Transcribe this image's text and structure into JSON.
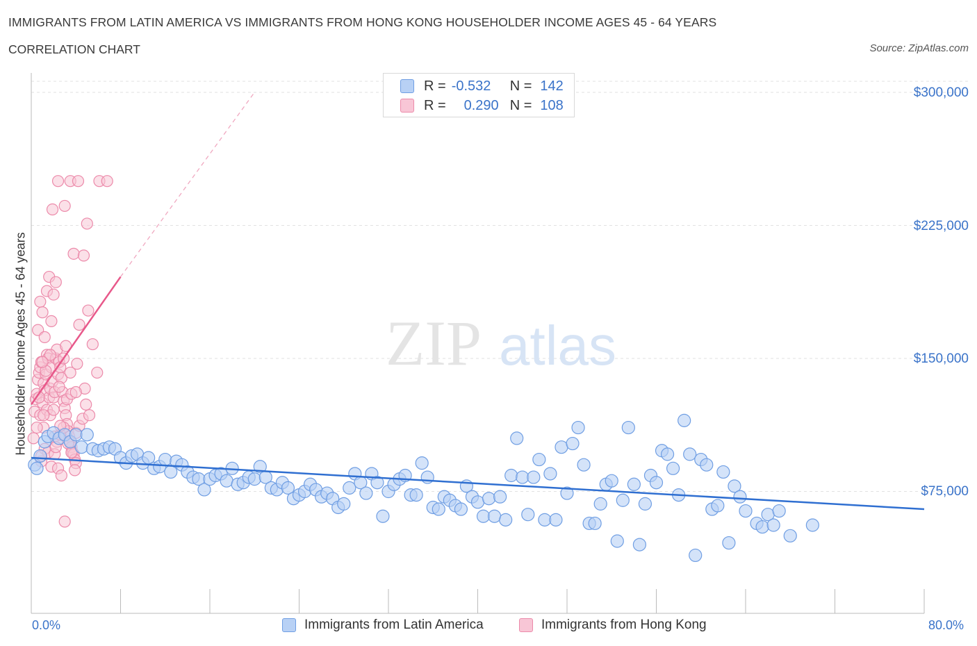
{
  "header": {
    "title": "IMMIGRANTS FROM LATIN AMERICA VS IMMIGRANTS FROM HONG KONG HOUSEHOLDER INCOME AGES 45 - 64 YEARS",
    "subtitle": "CORRELATION CHART",
    "source": "Source: ZipAtlas.com"
  },
  "legend": {
    "rows": [
      {
        "r_label": "R =",
        "r_value": "-0.532",
        "n_label": "N =",
        "n_value": "142"
      },
      {
        "r_label": "R =",
        "r_value": "0.290",
        "n_label": "N =",
        "n_value": "108"
      }
    ]
  },
  "bottom_legend": {
    "series1": "Immigrants from Latin America",
    "series2": "Immigrants from Hong Kong"
  },
  "axes": {
    "x_min_label": "0.0%",
    "x_max_label": "80.0%",
    "ylabel": "Householder Income Ages 45 - 64 years",
    "y_ticks": [
      "$300,000",
      "$225,000",
      "$150,000",
      "$75,000"
    ]
  },
  "watermark": {
    "zip": "ZIP",
    "atlas": "atlas"
  },
  "colors": {
    "blue": "#3a73c9",
    "blue_fill": "#b8d1f5",
    "pink": "#ec6f97",
    "pink_fill": "#f8c6d6"
  },
  "chart_data": {
    "type": "scatter",
    "xlabel": "",
    "ylabel": "Householder Income Ages 45 - 64 years",
    "xlim": [
      0,
      80
    ],
    "ylim": [
      0,
      300000
    ],
    "grid": true,
    "series": [
      {
        "name": "Immigrants from Latin America",
        "trend": {
          "x": [
            0,
            80
          ],
          "y": [
            94000,
            65000
          ]
        },
        "points": [
          [
            0.3,
            90000
          ],
          [
            0.5,
            88000
          ],
          [
            0.8,
            95000
          ],
          [
            1.2,
            103000
          ],
          [
            1.5,
            106000
          ],
          [
            2.0,
            108000
          ],
          [
            2.5,
            105000
          ],
          [
            3.0,
            107000
          ],
          [
            3.5,
            103000
          ],
          [
            4.0,
            107000
          ],
          [
            4.5,
            100000
          ],
          [
            5.0,
            107000
          ],
          [
            5.5,
            99000
          ],
          [
            6.0,
            98000
          ],
          [
            6.5,
            99000
          ],
          [
            7.0,
            100000
          ],
          [
            7.5,
            99000
          ],
          [
            8.0,
            94000
          ],
          [
            8.5,
            91000
          ],
          [
            9.0,
            95000
          ],
          [
            9.5,
            96000
          ],
          [
            10.0,
            91000
          ],
          [
            10.5,
            94000
          ],
          [
            11.0,
            88000
          ],
          [
            11.5,
            89000
          ],
          [
            12.0,
            93000
          ],
          [
            12.5,
            86000
          ],
          [
            13.0,
            92000
          ],
          [
            13.5,
            90000
          ],
          [
            14.0,
            86000
          ],
          [
            14.5,
            83000
          ],
          [
            15.0,
            82000
          ],
          [
            15.5,
            76000
          ],
          [
            16.0,
            82000
          ],
          [
            16.5,
            84000
          ],
          [
            17.0,
            85000
          ],
          [
            17.5,
            81000
          ],
          [
            18.0,
            88000
          ],
          [
            18.5,
            79000
          ],
          [
            19.0,
            80000
          ],
          [
            19.5,
            83000
          ],
          [
            20.0,
            82000
          ],
          [
            20.5,
            89000
          ],
          [
            21.0,
            83000
          ],
          [
            21.5,
            77000
          ],
          [
            22.0,
            76000
          ],
          [
            22.5,
            80000
          ],
          [
            23.0,
            77000
          ],
          [
            23.5,
            71000
          ],
          [
            24.0,
            73000
          ],
          [
            24.5,
            75000
          ],
          [
            25.0,
            79000
          ],
          [
            25.5,
            76000
          ],
          [
            26.0,
            72000
          ],
          [
            26.5,
            74000
          ],
          [
            27.0,
            71000
          ],
          [
            27.5,
            66000
          ],
          [
            28.0,
            68000
          ],
          [
            28.5,
            77000
          ],
          [
            29.0,
            85000
          ],
          [
            29.5,
            80000
          ],
          [
            30.0,
            74000
          ],
          [
            30.5,
            85000
          ],
          [
            31.0,
            80000
          ],
          [
            31.5,
            61000
          ],
          [
            32.0,
            75000
          ],
          [
            32.5,
            79000
          ],
          [
            33.0,
            82000
          ],
          [
            33.5,
            84000
          ],
          [
            34.0,
            73000
          ],
          [
            34.5,
            73000
          ],
          [
            35.0,
            91000
          ],
          [
            35.5,
            83000
          ],
          [
            36.0,
            66000
          ],
          [
            36.5,
            65000
          ],
          [
            37.0,
            72000
          ],
          [
            37.5,
            70000
          ],
          [
            38.0,
            67000
          ],
          [
            38.5,
            65000
          ],
          [
            39.0,
            78000
          ],
          [
            39.5,
            72000
          ],
          [
            40.0,
            69000
          ],
          [
            40.5,
            61000
          ],
          [
            41.0,
            71000
          ],
          [
            41.5,
            61000
          ],
          [
            42.0,
            72000
          ],
          [
            42.5,
            59000
          ],
          [
            43.0,
            84000
          ],
          [
            43.5,
            105000
          ],
          [
            44.0,
            83000
          ],
          [
            44.5,
            62000
          ],
          [
            45.0,
            83000
          ],
          [
            45.5,
            93000
          ],
          [
            46.0,
            59000
          ],
          [
            46.5,
            85000
          ],
          [
            47.0,
            59000
          ],
          [
            47.5,
            100000
          ],
          [
            48.0,
            74000
          ],
          [
            48.5,
            102000
          ],
          [
            49.0,
            111000
          ],
          [
            49.5,
            90000
          ],
          [
            50.0,
            57000
          ],
          [
            50.5,
            57000
          ],
          [
            51.0,
            68000
          ],
          [
            51.5,
            79000
          ],
          [
            52.0,
            81000
          ],
          [
            52.5,
            47000
          ],
          [
            53.0,
            70000
          ],
          [
            53.5,
            111000
          ],
          [
            54.0,
            79000
          ],
          [
            54.5,
            45000
          ],
          [
            55.0,
            68000
          ],
          [
            55.5,
            84000
          ],
          [
            56.0,
            80000
          ],
          [
            56.5,
            98000
          ],
          [
            57.0,
            96000
          ],
          [
            57.5,
            88000
          ],
          [
            58.0,
            73000
          ],
          [
            58.5,
            115000
          ],
          [
            59.0,
            96000
          ],
          [
            59.5,
            39000
          ],
          [
            60.0,
            93000
          ],
          [
            60.5,
            90000
          ],
          [
            61.0,
            65000
          ],
          [
            61.5,
            67000
          ],
          [
            62.0,
            86000
          ],
          [
            62.5,
            46000
          ],
          [
            63.0,
            78000
          ],
          [
            63.5,
            72000
          ],
          [
            64.0,
            64000
          ],
          [
            65.0,
            57000
          ],
          [
            65.5,
            55000
          ],
          [
            66.0,
            62000
          ],
          [
            66.5,
            56000
          ],
          [
            67.0,
            64000
          ],
          [
            68.0,
            50000
          ],
          [
            70.0,
            56000
          ]
        ]
      },
      {
        "name": "Immigrants from Hong Kong",
        "trend": {
          "x": [
            0,
            8
          ],
          "y": [
            124000,
            196000
          ],
          "x_dashed_end": 20,
          "y_dashed_end": 300000
        },
        "points": [
          [
            0.2,
            105000
          ],
          [
            0.3,
            120000
          ],
          [
            0.4,
            127000
          ],
          [
            0.5,
            130000
          ],
          [
            0.6,
            138000
          ],
          [
            0.7,
            142000
          ],
          [
            0.8,
            145000
          ],
          [
            0.9,
            148000
          ],
          [
            1.0,
            125000
          ],
          [
            1.1,
            136000
          ],
          [
            1.2,
            132000
          ],
          [
            1.3,
            141000
          ],
          [
            1.4,
            152000
          ],
          [
            1.5,
            150000
          ],
          [
            1.6,
            128000
          ],
          [
            1.7,
            133000
          ],
          [
            1.8,
            145000
          ],
          [
            1.9,
            137000
          ],
          [
            2.0,
            128000
          ],
          [
            2.1,
            131000
          ],
          [
            2.2,
            150000
          ],
          [
            2.3,
            155000
          ],
          [
            2.4,
            141000
          ],
          [
            2.5,
            148000
          ],
          [
            2.6,
            145000
          ],
          [
            2.7,
            139000
          ],
          [
            2.8,
            131000
          ],
          [
            2.9,
            126000
          ],
          [
            3.0,
            122000
          ],
          [
            3.1,
            118000
          ],
          [
            3.2,
            113000
          ],
          [
            3.3,
            109000
          ],
          [
            3.4,
            106000
          ],
          [
            3.5,
            103000
          ],
          [
            3.6,
            100000
          ],
          [
            3.7,
            97000
          ],
          [
            3.8,
            96000
          ],
          [
            3.9,
            93000
          ],
          [
            4.0,
            91000
          ],
          [
            0.6,
            166000
          ],
          [
            0.8,
            182000
          ],
          [
            1.0,
            176000
          ],
          [
            1.2,
            162000
          ],
          [
            1.4,
            188000
          ],
          [
            1.6,
            196000
          ],
          [
            1.8,
            171000
          ],
          [
            2.0,
            186000
          ],
          [
            2.2,
            193000
          ],
          [
            0.8,
            118000
          ],
          [
            1.1,
            111000
          ],
          [
            1.4,
            121000
          ],
          [
            1.7,
            118000
          ],
          [
            2.1,
            106000
          ],
          [
            2.3,
            103000
          ],
          [
            2.6,
            107000
          ],
          [
            2.9,
            111000
          ],
          [
            3.3,
            102000
          ],
          [
            3.6,
            97000
          ],
          [
            4.0,
            108000
          ],
          [
            4.3,
            112000
          ],
          [
            4.6,
            116000
          ],
          [
            4.9,
            124000
          ],
          [
            5.2,
            118000
          ],
          [
            0.9,
            92000
          ],
          [
            1.2,
            99000
          ],
          [
            1.5,
            97000
          ],
          [
            1.8,
            89000
          ],
          [
            2.1,
            96000
          ],
          [
            2.4,
            88000
          ],
          [
            2.7,
            84000
          ],
          [
            3.0,
            58000
          ],
          [
            1.9,
            234000
          ],
          [
            2.4,
            250000
          ],
          [
            3.0,
            236000
          ],
          [
            3.5,
            250000
          ],
          [
            4.2,
            250000
          ],
          [
            5.0,
            226000
          ],
          [
            6.1,
            250000
          ],
          [
            6.8,
            250000
          ],
          [
            3.8,
            209000
          ],
          [
            4.7,
            208000
          ],
          [
            5.1,
            177000
          ],
          [
            4.3,
            169000
          ],
          [
            3.1,
            157000
          ],
          [
            5.5,
            158000
          ],
          [
            4.1,
            147000
          ],
          [
            3.2,
            127000
          ],
          [
            4.8,
            133000
          ],
          [
            5.9,
            142000
          ],
          [
            3.6,
            130000
          ],
          [
            0.7,
            128000
          ],
          [
            1.3,
            143000
          ],
          [
            2.0,
            121000
          ],
          [
            2.6,
            112000
          ],
          [
            0.9,
            95000
          ],
          [
            4.0,
            131000
          ],
          [
            3.9,
            87000
          ],
          [
            1.1,
            118000
          ],
          [
            2.9,
            150000
          ],
          [
            0.5,
            111000
          ],
          [
            1.7,
            152000
          ],
          [
            3.5,
            142000
          ],
          [
            2.2,
            100000
          ],
          [
            1.0,
            148000
          ],
          [
            2.5,
            134000
          ]
        ]
      }
    ]
  }
}
